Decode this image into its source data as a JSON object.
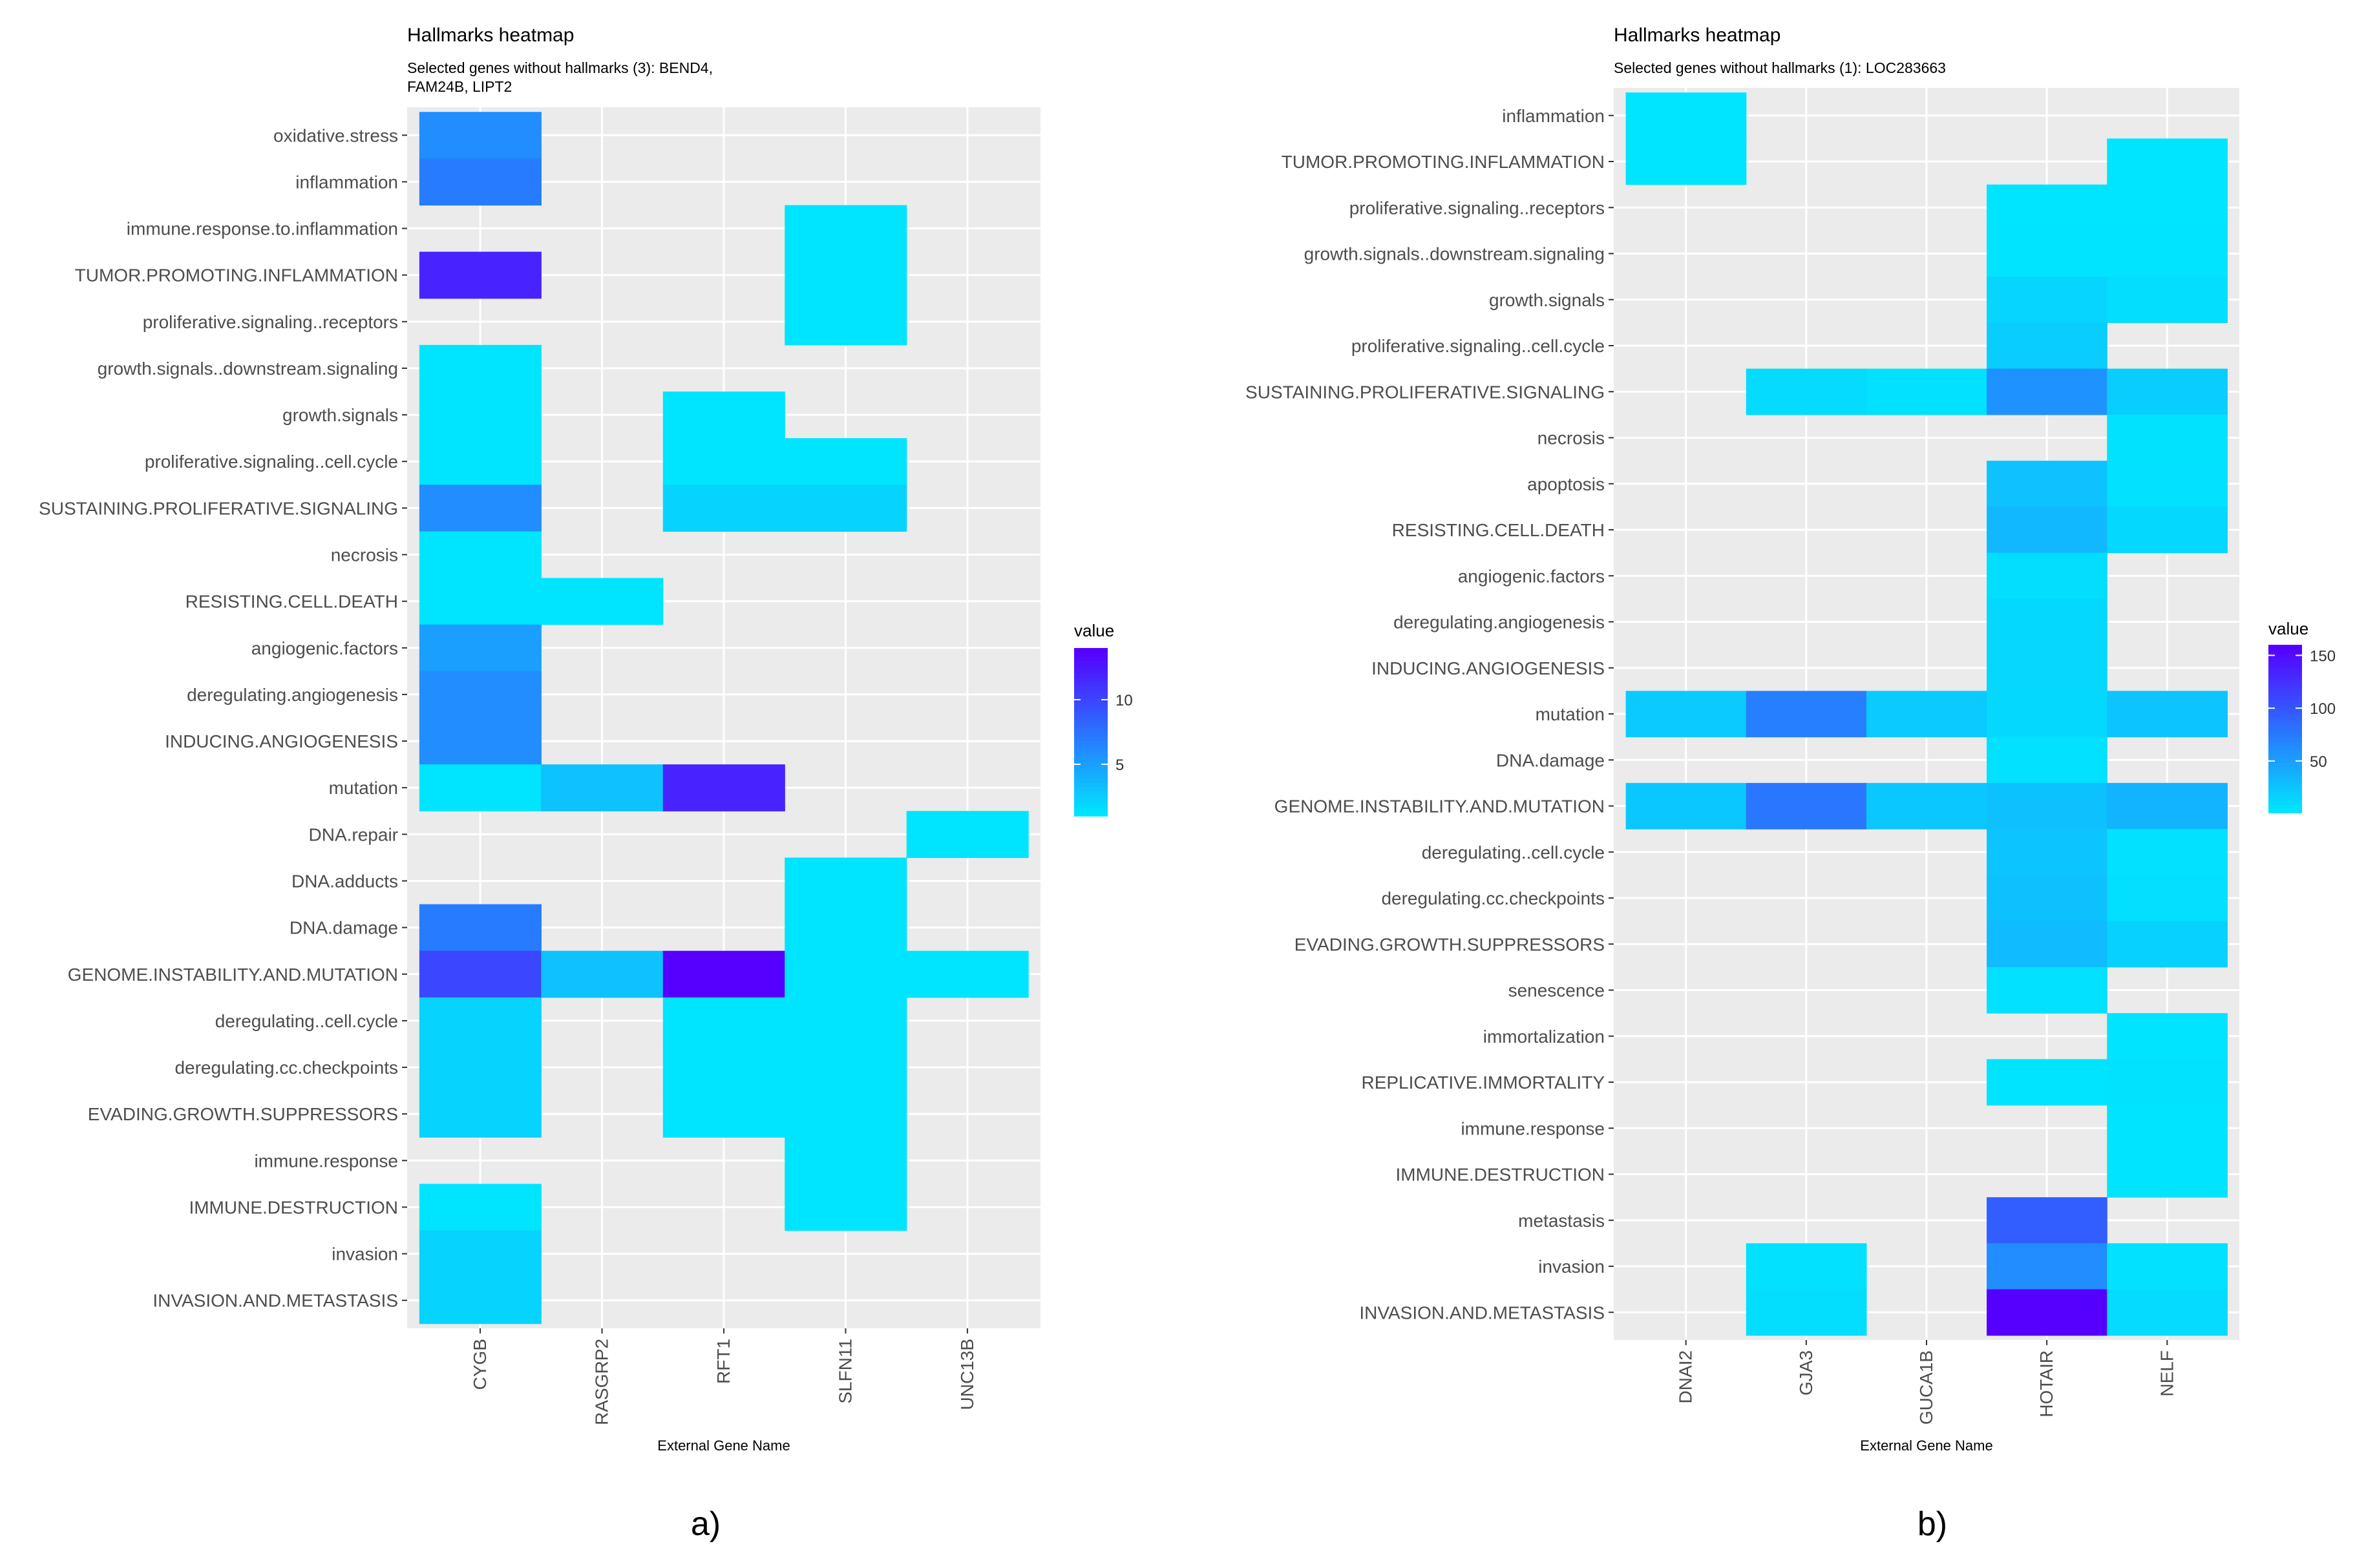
{
  "chart_data": [
    {
      "type": "heatmap",
      "title": "Hallmarks heatmap",
      "subtitle_lines": [
        "Selected genes without hallmarks (3): BEND4,",
        "FAM24B, LIPT2"
      ],
      "xlabel": "External Gene Name",
      "ylabel": "",
      "caption": "a)",
      "x_categories": [
        "CYGB",
        "RASGRP2",
        "RFT1",
        "SLFN11",
        "UNC13B"
      ],
      "y_categories": [
        "oxidative.stress",
        "inflammation",
        "immune.response.to.inflammation",
        "TUMOR.PROMOTING.INFLAMMATION",
        "proliferative.signaling..receptors",
        "growth.signals..downstream.signaling",
        "growth.signals",
        "proliferative.signaling..cell.cycle",
        "SUSTAINING.PROLIFERATIVE.SIGNALING",
        "necrosis",
        "RESISTING.CELL.DEATH",
        "angiogenic.factors",
        "deregulating.angiogenesis",
        "INDUCING.ANGIOGENESIS",
        "mutation",
        "DNA.repair",
        "DNA.adducts",
        "DNA.damage",
        "GENOME.INSTABILITY.AND.MUTATION",
        "deregulating..cell.cycle",
        "deregulating.cc.checkpoints",
        "EVADING.GROWTH.SUPPRESSORS",
        "immune.response",
        "IMMUNE.DESTRUCTION",
        "invasion",
        "INVASION.AND.METASTASIS"
      ],
      "legend_title": "value",
      "legend_ticks": [
        5,
        10
      ],
      "value_range": [
        1,
        14
      ],
      "color_low": "#00E5FF",
      "color_high": "#5500FF",
      "panel_color": "#EBEBEB",
      "grid_color": "#FFFFFF",
      "cells": [
        [
          "oxidative.stress",
          "CYGB",
          6
        ],
        [
          "inflammation",
          "CYGB",
          7
        ],
        [
          "TUMOR.PROMOTING.INFLAMMATION",
          "CYGB",
          12
        ],
        [
          "immune.response.to.inflammation",
          "SLFN11",
          1
        ],
        [
          "TUMOR.PROMOTING.INFLAMMATION",
          "SLFN11",
          1
        ],
        [
          "proliferative.signaling..receptors",
          "SLFN11",
          1
        ],
        [
          "growth.signals..downstream.signaling",
          "CYGB",
          1
        ],
        [
          "growth.signals",
          "CYGB",
          1
        ],
        [
          "growth.signals",
          "RFT1",
          1
        ],
        [
          "proliferative.signaling..cell.cycle",
          "CYGB",
          1
        ],
        [
          "proliferative.signaling..cell.cycle",
          "RFT1",
          1
        ],
        [
          "proliferative.signaling..cell.cycle",
          "SLFN11",
          1
        ],
        [
          "SUSTAINING.PROLIFERATIVE.SIGNALING",
          "CYGB",
          6
        ],
        [
          "SUSTAINING.PROLIFERATIVE.SIGNALING",
          "RFT1",
          2
        ],
        [
          "SUSTAINING.PROLIFERATIVE.SIGNALING",
          "SLFN11",
          2
        ],
        [
          "necrosis",
          "CYGB",
          1
        ],
        [
          "RESISTING.CELL.DEATH",
          "CYGB",
          1
        ],
        [
          "RESISTING.CELL.DEATH",
          "RASGRP2",
          1
        ],
        [
          "angiogenic.factors",
          "CYGB",
          5
        ],
        [
          "deregulating.angiogenesis",
          "CYGB",
          6
        ],
        [
          "INDUCING.ANGIOGENESIS",
          "CYGB",
          6
        ],
        [
          "mutation",
          "CYGB",
          1
        ],
        [
          "mutation",
          "RASGRP2",
          3
        ],
        [
          "mutation",
          "RFT1",
          12
        ],
        [
          "DNA.repair",
          "UNC13B",
          1
        ],
        [
          "DNA.adducts",
          "SLFN11",
          1
        ],
        [
          "DNA.damage",
          "CYGB",
          7
        ],
        [
          "DNA.damage",
          "SLFN11",
          1
        ],
        [
          "GENOME.INSTABILITY.AND.MUTATION",
          "CYGB",
          10
        ],
        [
          "GENOME.INSTABILITY.AND.MUTATION",
          "RASGRP2",
          3
        ],
        [
          "GENOME.INSTABILITY.AND.MUTATION",
          "RFT1",
          14
        ],
        [
          "GENOME.INSTABILITY.AND.MUTATION",
          "SLFN11",
          1
        ],
        [
          "GENOME.INSTABILITY.AND.MUTATION",
          "UNC13B",
          1
        ],
        [
          "deregulating..cell.cycle",
          "CYGB",
          2
        ],
        [
          "deregulating..cell.cycle",
          "RFT1",
          1
        ],
        [
          "deregulating..cell.cycle",
          "SLFN11",
          1
        ],
        [
          "deregulating.cc.checkpoints",
          "CYGB",
          2
        ],
        [
          "deregulating.cc.checkpoints",
          "RFT1",
          1
        ],
        [
          "deregulating.cc.checkpoints",
          "SLFN11",
          1
        ],
        [
          "EVADING.GROWTH.SUPPRESSORS",
          "CYGB",
          2
        ],
        [
          "EVADING.GROWTH.SUPPRESSORS",
          "RFT1",
          1
        ],
        [
          "EVADING.GROWTH.SUPPRESSORS",
          "SLFN11",
          1
        ],
        [
          "immune.response",
          "SLFN11",
          1
        ],
        [
          "IMMUNE.DESTRUCTION",
          "CYGB",
          1
        ],
        [
          "IMMUNE.DESTRUCTION",
          "SLFN11",
          1
        ],
        [
          "invasion",
          "CYGB",
          2
        ],
        [
          "INVASION.AND.METASTASIS",
          "CYGB",
          2
        ]
      ]
    },
    {
      "type": "heatmap",
      "title": "Hallmarks heatmap",
      "subtitle_lines": [
        "Selected genes without hallmarks (1): LOC283663"
      ],
      "xlabel": "External Gene Name",
      "ylabel": "",
      "caption": "b)",
      "x_categories": [
        "DNAI2",
        "GJA3",
        "GUCA1B",
        "HOTAIR",
        "NELF"
      ],
      "y_categories": [
        "inflammation",
        "TUMOR.PROMOTING.INFLAMMATION",
        "proliferative.signaling..receptors",
        "growth.signals..downstream.signaling",
        "growth.signals",
        "proliferative.signaling..cell.cycle",
        "SUSTAINING.PROLIFERATIVE.SIGNALING",
        "necrosis",
        "apoptosis",
        "RESISTING.CELL.DEATH",
        "angiogenic.factors",
        "deregulating.angiogenesis",
        "INDUCING.ANGIOGENESIS",
        "mutation",
        "DNA.damage",
        "GENOME.INSTABILITY.AND.MUTATION",
        "deregulating..cell.cycle",
        "deregulating.cc.checkpoints",
        "EVADING.GROWTH.SUPPRESSORS",
        "senescence",
        "immortalization",
        "REPLICATIVE.IMMORTALITY",
        "immune.response",
        "IMMUNE.DESTRUCTION",
        "metastasis",
        "invasion",
        "INVASION.AND.METASTASIS"
      ],
      "legend_title": "value",
      "legend_ticks": [
        50,
        100,
        150
      ],
      "value_range": [
        1,
        160
      ],
      "color_low": "#00E5FF",
      "color_high": "#5500FF",
      "panel_color": "#EBEBEB",
      "grid_color": "#FFFFFF",
      "cells": [
        [
          "inflammation",
          "DNAI2",
          1
        ],
        [
          "TUMOR.PROMOTING.INFLAMMATION",
          "DNAI2",
          1
        ],
        [
          "TUMOR.PROMOTING.INFLAMMATION",
          "NELF",
          1
        ],
        [
          "proliferative.signaling..receptors",
          "HOTAIR",
          1
        ],
        [
          "proliferative.signaling..receptors",
          "NELF",
          1
        ],
        [
          "growth.signals..downstream.signaling",
          "HOTAIR",
          2
        ],
        [
          "growth.signals..downstream.signaling",
          "NELF",
          2
        ],
        [
          "growth.signals",
          "HOTAIR",
          12
        ],
        [
          "growth.signals",
          "NELF",
          6
        ],
        [
          "proliferative.signaling..cell.cycle",
          "HOTAIR",
          18
        ],
        [
          "SUSTAINING.PROLIFERATIVE.SIGNALING",
          "GJA3",
          8
        ],
        [
          "SUSTAINING.PROLIFERATIVE.SIGNALING",
          "GUCA1B",
          4
        ],
        [
          "SUSTAINING.PROLIFERATIVE.SIGNALING",
          "HOTAIR",
          58
        ],
        [
          "SUSTAINING.PROLIFERATIVE.SIGNALING",
          "NELF",
          18
        ],
        [
          "necrosis",
          "NELF",
          3
        ],
        [
          "apoptosis",
          "HOTAIR",
          25
        ],
        [
          "apoptosis",
          "NELF",
          4
        ],
        [
          "RESISTING.CELL.DEATH",
          "HOTAIR",
          32
        ],
        [
          "RESISTING.CELL.DEATH",
          "NELF",
          10
        ],
        [
          "angiogenic.factors",
          "HOTAIR",
          6
        ],
        [
          "deregulating.angiogenesis",
          "HOTAIR",
          10
        ],
        [
          "INDUCING.ANGIOGENESIS",
          "HOTAIR",
          11
        ],
        [
          "mutation",
          "DNAI2",
          20
        ],
        [
          "mutation",
          "GJA3",
          72
        ],
        [
          "mutation",
          "GUCA1B",
          20
        ],
        [
          "mutation",
          "HOTAIR",
          10
        ],
        [
          "mutation",
          "NELF",
          24
        ],
        [
          "DNA.damage",
          "HOTAIR",
          4
        ],
        [
          "GENOME.INSTABILITY.AND.MUTATION",
          "DNAI2",
          22
        ],
        [
          "GENOME.INSTABILITY.AND.MUTATION",
          "GJA3",
          78
        ],
        [
          "GENOME.INSTABILITY.AND.MUTATION",
          "GUCA1B",
          22
        ],
        [
          "GENOME.INSTABILITY.AND.MUTATION",
          "HOTAIR",
          26
        ],
        [
          "GENOME.INSTABILITY.AND.MUTATION",
          "NELF",
          35
        ],
        [
          "deregulating..cell.cycle",
          "HOTAIR",
          24
        ],
        [
          "deregulating..cell.cycle",
          "NELF",
          4
        ],
        [
          "deregulating.cc.checkpoints",
          "HOTAIR",
          26
        ],
        [
          "deregulating.cc.checkpoints",
          "NELF",
          5
        ],
        [
          "EVADING.GROWTH.SUPPRESSORS",
          "HOTAIR",
          30
        ],
        [
          "EVADING.GROWTH.SUPPRESSORS",
          "NELF",
          14
        ],
        [
          "senescence",
          "HOTAIR",
          4
        ],
        [
          "immortalization",
          "NELF",
          2
        ],
        [
          "REPLICATIVE.IMMORTALITY",
          "HOTAIR",
          2
        ],
        [
          "REPLICATIVE.IMMORTALITY",
          "NELF",
          3
        ],
        [
          "immune.response",
          "NELF",
          2
        ],
        [
          "IMMUNE.DESTRUCTION",
          "NELF",
          2
        ],
        [
          "metastasis",
          "HOTAIR",
          95
        ],
        [
          "invasion",
          "GJA3",
          4
        ],
        [
          "invasion",
          "HOTAIR",
          62
        ],
        [
          "invasion",
          "NELF",
          4
        ],
        [
          "INVASION.AND.METASTASIS",
          "GJA3",
          6
        ],
        [
          "INVASION.AND.METASTASIS",
          "HOTAIR",
          160
        ],
        [
          "INVASION.AND.METASTASIS",
          "NELF",
          8
        ]
      ]
    }
  ]
}
